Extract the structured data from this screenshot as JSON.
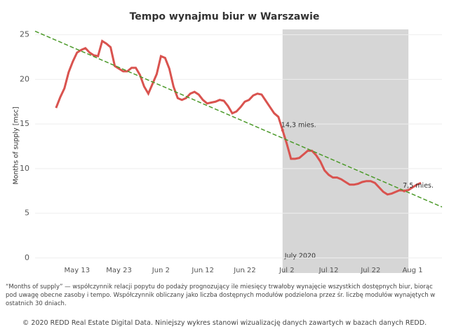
{
  "chart_data": {
    "type": "line",
    "title": "Tempo wynajmu biur w Warszawie",
    "y_label": "Months of supply [msc]",
    "xlim": [
      "05-03",
      "08-08"
    ],
    "ylim": [
      -1.7,
      25.6
    ],
    "yticks": [
      0,
      5,
      10,
      15,
      20,
      25
    ],
    "grid": true,
    "xticks": [
      {
        "value": "05-13",
        "label": "May 13"
      },
      {
        "value": "05-23",
        "label": "May 23"
      },
      {
        "value": "06-02",
        "label": "Jun 2"
      },
      {
        "value": "06-12",
        "label": "Jun 12"
      },
      {
        "value": "06-22",
        "label": "Jun 22"
      },
      {
        "value": "07-02",
        "label": "Jul 2"
      },
      {
        "value": "07-12",
        "label": "Jul 12"
      },
      {
        "value": "07-22",
        "label": "Jul 22"
      },
      {
        "value": "08-01",
        "label": "Aug 1"
      }
    ],
    "highlight": {
      "from": "07-01",
      "to": "07-31",
      "label": "July 2020",
      "color": "#d6d6d6"
    },
    "series": [
      {
        "name": "Months of supply",
        "color": "#d9534f",
        "style": "solid",
        "x": [
          "05-08",
          "05-09",
          "05-10",
          "05-11",
          "05-12",
          "05-13",
          "05-14",
          "05-15",
          "05-16",
          "05-17",
          "05-18",
          "05-19",
          "05-20",
          "05-21",
          "05-22",
          "05-23",
          "05-24",
          "05-25",
          "05-26",
          "05-27",
          "05-28",
          "05-29",
          "05-30",
          "05-31",
          "06-01",
          "06-02",
          "06-03",
          "06-04",
          "06-05",
          "06-06",
          "06-07",
          "06-08",
          "06-09",
          "06-10",
          "06-11",
          "06-12",
          "06-13",
          "06-14",
          "06-15",
          "06-16",
          "06-17",
          "06-18",
          "06-19",
          "06-20",
          "06-21",
          "06-22",
          "06-23",
          "06-24",
          "06-25",
          "06-26",
          "06-27",
          "06-28",
          "06-29",
          "06-30",
          "07-01",
          "07-02",
          "07-03",
          "07-04",
          "07-05",
          "07-06",
          "07-07",
          "07-08",
          "07-09",
          "07-10",
          "07-11",
          "07-12",
          "07-13",
          "07-14",
          "07-15",
          "07-16",
          "07-17",
          "07-18",
          "07-19",
          "07-20",
          "07-21",
          "07-22",
          "07-23",
          "07-24",
          "07-25",
          "07-26",
          "07-27",
          "07-28",
          "07-29",
          "07-30",
          "07-31",
          "08-01",
          "08-02",
          "08-03"
        ],
        "values": [
          16.8,
          18,
          19,
          20.8,
          22,
          23,
          23.3,
          23.5,
          23,
          22.7,
          22.6,
          24.3,
          24,
          23.6,
          21.5,
          21.2,
          20.9,
          20.9,
          21.3,
          21.3,
          20.5,
          19.2,
          18.4,
          19.5,
          20.6,
          22.6,
          22.4,
          21.2,
          19.2,
          17.9,
          17.7,
          17.9,
          18.4,
          18.6,
          18.3,
          17.7,
          17.3,
          17.4,
          17.5,
          17.7,
          17.6,
          17,
          16.2,
          16.4,
          16.9,
          17.5,
          17.7,
          18.2,
          18.4,
          18.3,
          17.6,
          16.9,
          16.2,
          15.8,
          14.3,
          12.8,
          11.1,
          11.1,
          11.2,
          11.6,
          12,
          12,
          11.5,
          10.8,
          9.8,
          9.3,
          9,
          9,
          8.8,
          8.5,
          8.2,
          8.2,
          8.3,
          8.5,
          8.6,
          8.6,
          8.4,
          7.9,
          7.4,
          7.1,
          7.2,
          7.4,
          7.6,
          7.5,
          7.6,
          7.9,
          8.2,
          8.4
        ]
      },
      {
        "name": "Trend",
        "color": "#4c9a2a",
        "style": "dashed",
        "x": [
          "05-03",
          "08-08"
        ],
        "values": [
          25.4,
          5.7
        ]
      }
    ],
    "annotations": [
      {
        "x": "07-01",
        "y": 14.3,
        "text": "14,3 mies."
      },
      {
        "x": "07-30",
        "y": 7.5,
        "text": "7,5 mies."
      }
    ],
    "note": "“Months of supply” — współczynnik relacji popytu do podaży prognozujący ile miesięcy trwałoby wynajęcie wszystkich dostępnych biur, biorąc pod uwagę obecne zasoby i tempo. Współczynnik obliczany jako liczba dostępnych modułów podzielona przez śr. liczbę modułów wynajętych w ostatnich 30 dniach.",
    "footer": "© 2020 REDD Real Estate Digital Data. Niniejszy wykres stanowi wizualizację danych zawartych w bazach danych REDD."
  }
}
